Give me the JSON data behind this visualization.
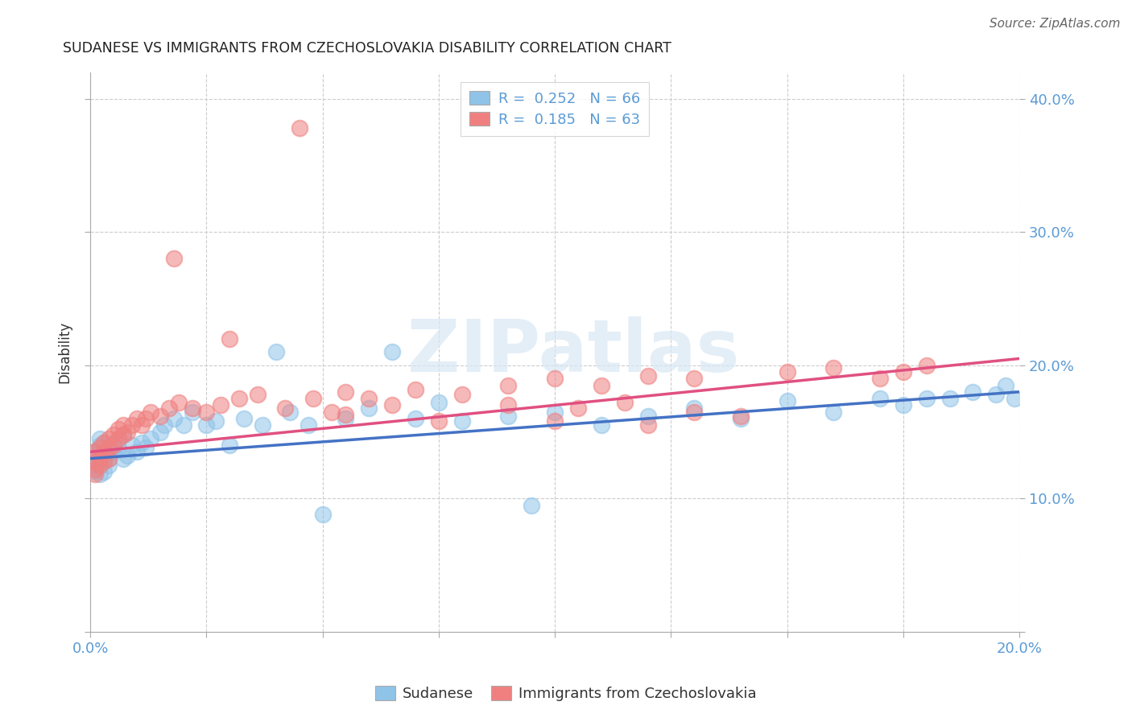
{
  "title": "SUDANESE VS IMMIGRANTS FROM CZECHOSLOVAKIA DISABILITY CORRELATION CHART",
  "source": "Source: ZipAtlas.com",
  "ylabel": "Disability",
  "xlim": [
    0.0,
    0.2
  ],
  "ylim": [
    0.0,
    0.42
  ],
  "xtick_positions": [
    0.0,
    0.025,
    0.05,
    0.075,
    0.1,
    0.125,
    0.15,
    0.175,
    0.2
  ],
  "ytick_positions": [
    0.0,
    0.1,
    0.2,
    0.3,
    0.4
  ],
  "color_blue": "#90C3E8",
  "color_pink": "#F08080",
  "color_blue_line": "#4472C4",
  "color_pink_line": "#E05080",
  "color_axis_text": "#5B9BD5",
  "color_grid": "#cccccc",
  "watermark": "ZIPatlas",
  "legend_line1": "R =  0.252   N = 66",
  "legend_line2": "R =  0.185   N = 63",
  "sud_x": [
    0.001,
    0.001,
    0.001,
    0.001,
    0.001,
    0.002,
    0.002,
    0.002,
    0.002,
    0.002,
    0.003,
    0.003,
    0.003,
    0.003,
    0.004,
    0.004,
    0.004,
    0.005,
    0.005,
    0.006,
    0.006,
    0.007,
    0.007,
    0.008,
    0.009,
    0.01,
    0.011,
    0.012,
    0.013,
    0.015,
    0.016,
    0.018,
    0.02,
    0.022,
    0.025,
    0.027,
    0.03,
    0.033,
    0.037,
    0.04,
    0.043,
    0.047,
    0.05,
    0.055,
    0.06,
    0.065,
    0.07,
    0.075,
    0.08,
    0.09,
    0.095,
    0.1,
    0.11,
    0.12,
    0.13,
    0.14,
    0.15,
    0.16,
    0.17,
    0.175,
    0.18,
    0.185,
    0.19,
    0.195,
    0.197,
    0.199
  ],
  "sud_y": [
    0.13,
    0.125,
    0.135,
    0.12,
    0.128,
    0.138,
    0.132,
    0.14,
    0.118,
    0.145,
    0.133,
    0.128,
    0.142,
    0.12,
    0.136,
    0.13,
    0.125,
    0.14,
    0.135,
    0.145,
    0.138,
    0.148,
    0.13,
    0.132,
    0.14,
    0.135,
    0.142,
    0.138,
    0.145,
    0.15,
    0.155,
    0.16,
    0.155,
    0.165,
    0.155,
    0.158,
    0.14,
    0.16,
    0.155,
    0.21,
    0.165,
    0.155,
    0.088,
    0.16,
    0.168,
    0.21,
    0.16,
    0.172,
    0.158,
    0.162,
    0.095,
    0.165,
    0.155,
    0.162,
    0.168,
    0.16,
    0.173,
    0.165,
    0.175,
    0.17,
    0.175,
    0.175,
    0.18,
    0.178,
    0.185,
    0.175
  ],
  "czech_x": [
    0.001,
    0.001,
    0.001,
    0.001,
    0.002,
    0.002,
    0.002,
    0.003,
    0.003,
    0.003,
    0.004,
    0.004,
    0.004,
    0.005,
    0.005,
    0.006,
    0.006,
    0.007,
    0.007,
    0.008,
    0.009,
    0.01,
    0.011,
    0.012,
    0.013,
    0.015,
    0.017,
    0.019,
    0.022,
    0.025,
    0.028,
    0.032,
    0.036,
    0.042,
    0.048,
    0.052,
    0.055,
    0.06,
    0.07,
    0.08,
    0.09,
    0.1,
    0.11,
    0.12,
    0.13,
    0.15,
    0.16,
    0.17,
    0.175,
    0.18,
    0.045,
    0.018,
    0.03,
    0.055,
    0.065,
    0.1,
    0.12,
    0.13,
    0.14,
    0.075,
    0.09,
    0.105,
    0.115
  ],
  "czech_y": [
    0.128,
    0.122,
    0.135,
    0.118,
    0.138,
    0.13,
    0.125,
    0.142,
    0.135,
    0.128,
    0.145,
    0.138,
    0.13,
    0.148,
    0.14,
    0.152,
    0.145,
    0.155,
    0.148,
    0.15,
    0.155,
    0.16,
    0.155,
    0.16,
    0.165,
    0.162,
    0.168,
    0.172,
    0.168,
    0.165,
    0.17,
    0.175,
    0.178,
    0.168,
    0.175,
    0.165,
    0.18,
    0.175,
    0.182,
    0.178,
    0.185,
    0.19,
    0.185,
    0.192,
    0.19,
    0.195,
    0.198,
    0.19,
    0.195,
    0.2,
    0.378,
    0.28,
    0.22,
    0.163,
    0.17,
    0.158,
    0.155,
    0.165,
    0.162,
    0.158,
    0.17,
    0.168,
    0.172
  ]
}
